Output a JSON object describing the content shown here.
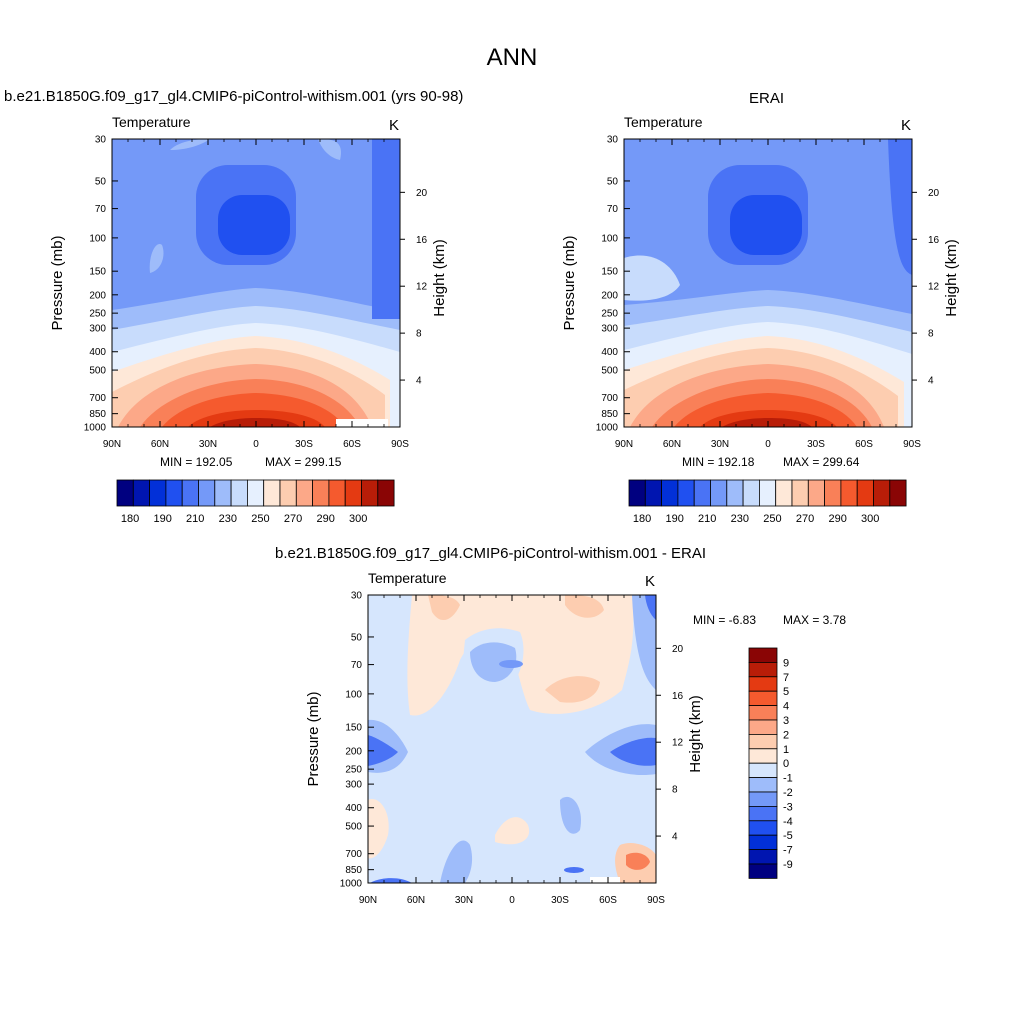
{
  "page_title": "ANN",
  "colors": {
    "abs_scale": [
      "#000080",
      "#0015b0",
      "#0230d8",
      "#2050f0",
      "#4a73f5",
      "#7499f8",
      "#9ebcfa",
      "#c8dcfc",
      "#e6f0fe",
      "#fee8d8",
      "#fdcdb0",
      "#fca888",
      "#f98058",
      "#f55a2e",
      "#e43a12",
      "#b81d08",
      "#8a0505"
    ],
    "diff_scale": [
      "#000080",
      "#0015b0",
      "#0230d8",
      "#2050f0",
      "#4a73f5",
      "#7499f8",
      "#9ebcfa",
      "#d6e6fd",
      "#fee8d8",
      "#fdcdb0",
      "#fca888",
      "#f98058",
      "#f55a2e",
      "#e43a12",
      "#b81d08",
      "#8a0505"
    ]
  },
  "chart_data": [
    {
      "type": "heatmap",
      "title": "b.e21.B1850G.f09_g17_gl4.CMIP6-piControl-withism.001 (yrs 90-98)",
      "variable": "Temperature",
      "units": "K",
      "ylabel": "Pressure (mb)",
      "y2label": "Height (km)",
      "x_ticks": [
        "90N",
        "60N",
        "30N",
        "0",
        "30S",
        "60S",
        "90S"
      ],
      "y_ticks": [
        "30",
        "50",
        "70",
        "100",
        "150",
        "200",
        "250",
        "300",
        "400",
        "500",
        "700",
        "850",
        "1000"
      ],
      "y2_ticks": [
        "4",
        "8",
        "12",
        "16",
        "20"
      ],
      "min_label": "MIN = 192.05",
      "max_label": "MAX = 299.15",
      "colorbar_labels": [
        "180",
        "190",
        "210",
        "230",
        "250",
        "270",
        "290",
        "300"
      ],
      "min": 192.05,
      "max": 299.15
    },
    {
      "type": "heatmap",
      "title": "ERAI",
      "variable": "Temperature",
      "units": "K",
      "ylabel": "Pressure (mb)",
      "y2label": "Height (km)",
      "x_ticks": [
        "90N",
        "60N",
        "30N",
        "0",
        "30S",
        "60S",
        "90S"
      ],
      "y_ticks": [
        "30",
        "50",
        "70",
        "100",
        "150",
        "200",
        "250",
        "300",
        "400",
        "500",
        "700",
        "850",
        "1000"
      ],
      "y2_ticks": [
        "4",
        "8",
        "12",
        "16",
        "20"
      ],
      "min_label": "MIN = 192.18",
      "max_label": "MAX = 299.64",
      "colorbar_labels": [
        "180",
        "190",
        "210",
        "230",
        "250",
        "270",
        "290",
        "300"
      ],
      "min": 192.18,
      "max": 299.64
    },
    {
      "type": "heatmap",
      "title": "b.e21.B1850G.f09_g17_gl4.CMIP6-piControl-withism.001 - ERAI",
      "variable": "Temperature",
      "units": "K",
      "ylabel": "Pressure (mb)",
      "y2label": "Height (km)",
      "x_ticks": [
        "90N",
        "60N",
        "30N",
        "0",
        "30S",
        "60S",
        "90S"
      ],
      "y_ticks": [
        "30",
        "50",
        "70",
        "100",
        "150",
        "200",
        "250",
        "300",
        "400",
        "500",
        "700",
        "850",
        "1000"
      ],
      "y2_ticks": [
        "4",
        "8",
        "12",
        "16",
        "20"
      ],
      "min_label": "MIN =  -6.83",
      "max_label": "MAX =   3.78",
      "colorbar_labels": [
        "9",
        "7",
        "5",
        "4",
        "3",
        "2",
        "1",
        "0",
        "-1",
        "-2",
        "-3",
        "-4",
        "-5",
        "-7",
        "-9"
      ],
      "min": -6.83,
      "max": 3.78
    }
  ]
}
